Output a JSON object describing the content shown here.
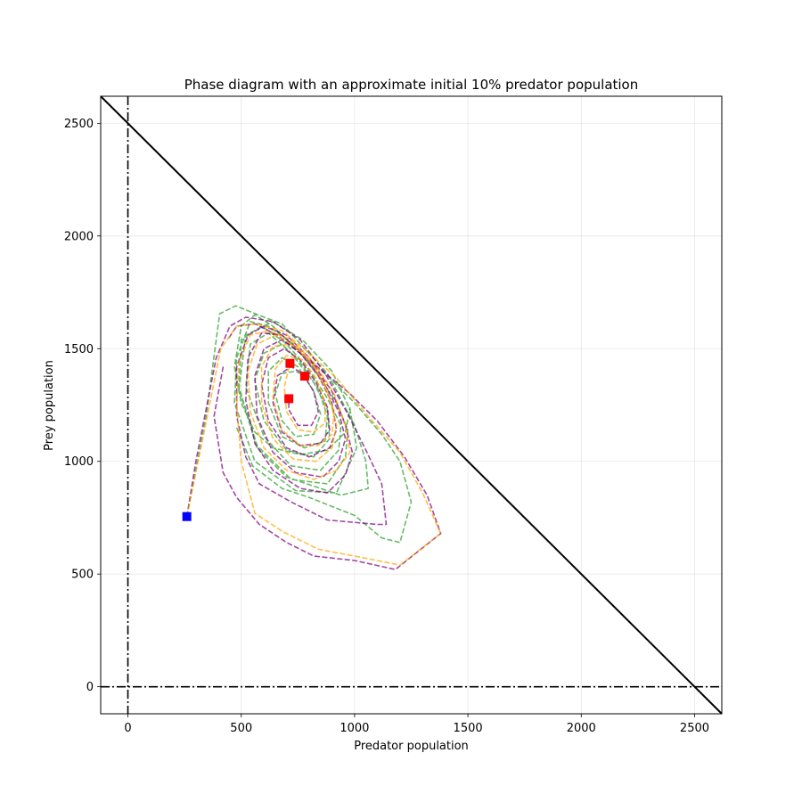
{
  "chart_data": {
    "type": "line",
    "title": "Phase diagram with an approximate initial 10% predator population",
    "xlabel": "Predator population",
    "ylabel": "Prey population",
    "xlim": [
      -120,
      2620
    ],
    "ylim": [
      -120,
      2620
    ],
    "xticks": [
      0,
      500,
      1000,
      1500,
      2000,
      2500
    ],
    "yticks": [
      0,
      500,
      1000,
      1500,
      2000,
      2500
    ],
    "grid": true,
    "reference_lines": {
      "capacity_line": [
        [
          -120,
          2620
        ],
        [
          2620,
          -120
        ]
      ],
      "x_zero": 0,
      "y_zero": 0
    },
    "start_point": {
      "x": 260,
      "y": 755,
      "color": "#0000ff"
    },
    "end_points": [
      {
        "x": 710,
        "y": 1278,
        "color": "#ff0000"
      },
      {
        "x": 780,
        "y": 1378,
        "color": "#ff0000"
      },
      {
        "x": 715,
        "y": 1435,
        "color": "#ff0000"
      }
    ],
    "series": [
      {
        "color": "#2ca02c",
        "points": [
          [
            260,
            755
          ],
          [
            345,
            1200
          ],
          [
            405,
            1655
          ],
          [
            475,
            1690
          ],
          [
            600,
            1640
          ],
          [
            680,
            1610
          ],
          [
            880,
            1390
          ],
          [
            1000,
            1160
          ],
          [
            1050,
            1000
          ],
          [
            1060,
            880
          ],
          [
            940,
            850
          ],
          [
            700,
            930
          ],
          [
            570,
            1060
          ],
          [
            490,
            1320
          ],
          [
            520,
            1560
          ],
          [
            640,
            1620
          ],
          [
            770,
            1540
          ],
          [
            900,
            1400
          ],
          [
            980,
            1230
          ],
          [
            1010,
            1060
          ],
          [
            920,
            860
          ],
          [
            740,
            870
          ],
          [
            560,
            1000
          ],
          [
            470,
            1260
          ],
          [
            480,
            1460
          ],
          [
            540,
            1620
          ],
          [
            620,
            1600
          ],
          [
            730,
            1520
          ],
          [
            840,
            1380
          ],
          [
            920,
            1260
          ],
          [
            970,
            1140
          ],
          [
            960,
            1020
          ],
          [
            880,
            900
          ],
          [
            720,
            920
          ],
          [
            570,
            1070
          ],
          [
            490,
            1330
          ],
          [
            500,
            1540
          ],
          [
            590,
            1600
          ],
          [
            690,
            1530
          ],
          [
            790,
            1420
          ],
          [
            880,
            1280
          ],
          [
            940,
            1160
          ],
          [
            930,
            1050
          ],
          [
            850,
            960
          ],
          [
            720,
            980
          ],
          [
            600,
            1110
          ],
          [
            520,
            1330
          ],
          [
            540,
            1520
          ],
          [
            620,
            1570
          ],
          [
            720,
            1480
          ],
          [
            820,
            1350
          ],
          [
            880,
            1230
          ],
          [
            890,
            1100
          ],
          [
            820,
            1020
          ],
          [
            700,
            1050
          ],
          [
            600,
            1180
          ],
          [
            560,
            1360
          ],
          [
            600,
            1480
          ],
          [
            680,
            1520
          ],
          [
            760,
            1440
          ],
          [
            840,
            1320
          ],
          [
            880,
            1200
          ],
          [
            870,
            1090
          ],
          [
            780,
            1060
          ],
          [
            680,
            1110
          ],
          [
            620,
            1260
          ],
          [
            620,
            1400
          ],
          [
            680,
            1460
          ],
          [
            750,
            1420
          ],
          [
            820,
            1310
          ],
          [
            850,
            1210
          ],
          [
            820,
            1120
          ],
          [
            740,
            1110
          ],
          [
            680,
            1180
          ],
          [
            650,
            1300
          ],
          [
            680,
            1390
          ],
          [
            740,
            1400
          ],
          [
            780,
            1378
          ]
        ]
      },
      {
        "color": "#2ca02c",
        "points": [
          [
            480,
            1150
          ],
          [
            550,
            980
          ],
          [
            680,
            880
          ],
          [
            800,
            840
          ],
          [
            1000,
            760
          ],
          [
            1120,
            660
          ],
          [
            1200,
            640
          ],
          [
            1250,
            820
          ],
          [
            1200,
            1000
          ],
          [
            1120,
            1120
          ],
          [
            1000,
            1260
          ],
          [
            880,
            1380
          ],
          [
            760,
            1480
          ],
          [
            640,
            1600
          ],
          [
            560,
            1650
          ],
          [
            500,
            1600
          ],
          [
            470,
            1420
          ],
          [
            500,
            1260
          ],
          [
            560,
            1130
          ],
          [
            640,
            1060
          ],
          [
            760,
            1030
          ],
          [
            880,
            1050
          ],
          [
            960,
            1130
          ],
          [
            980,
            1240
          ]
        ]
      },
      {
        "color": "#800080",
        "points": [
          [
            260,
            755
          ],
          [
            300,
            1000
          ],
          [
            390,
            1460
          ],
          [
            450,
            1600
          ],
          [
            520,
            1640
          ],
          [
            640,
            1620
          ],
          [
            760,
            1540
          ],
          [
            870,
            1390
          ],
          [
            970,
            1210
          ],
          [
            1050,
            1050
          ],
          [
            1120,
            900
          ],
          [
            1140,
            720
          ],
          [
            1100,
            720
          ],
          [
            880,
            740
          ],
          [
            720,
            820
          ],
          [
            580,
            900
          ],
          [
            520,
            1020
          ],
          [
            480,
            1200
          ],
          [
            480,
            1420
          ],
          [
            530,
            1560
          ],
          [
            600,
            1600
          ],
          [
            700,
            1560
          ],
          [
            800,
            1460
          ],
          [
            900,
            1310
          ],
          [
            960,
            1160
          ],
          [
            990,
            1040
          ],
          [
            960,
            940
          ],
          [
            880,
            860
          ],
          [
            760,
            880
          ],
          [
            640,
            960
          ],
          [
            560,
            1080
          ],
          [
            520,
            1270
          ],
          [
            530,
            1460
          ],
          [
            590,
            1570
          ],
          [
            680,
            1560
          ],
          [
            770,
            1480
          ],
          [
            860,
            1360
          ],
          [
            930,
            1220
          ],
          [
            960,
            1100
          ],
          [
            930,
            1000
          ],
          [
            860,
            930
          ],
          [
            740,
            950
          ],
          [
            640,
            1040
          ],
          [
            570,
            1200
          ],
          [
            560,
            1380
          ],
          [
            600,
            1500
          ],
          [
            680,
            1540
          ],
          [
            760,
            1480
          ],
          [
            840,
            1380
          ],
          [
            900,
            1260
          ],
          [
            920,
            1140
          ],
          [
            890,
            1060
          ],
          [
            800,
            1020
          ],
          [
            700,
            1060
          ],
          [
            620,
            1180
          ],
          [
            590,
            1340
          ],
          [
            620,
            1460
          ],
          [
            690,
            1500
          ],
          [
            760,
            1450
          ],
          [
            830,
            1350
          ],
          [
            880,
            1240
          ],
          [
            890,
            1140
          ],
          [
            850,
            1080
          ],
          [
            760,
            1070
          ],
          [
            680,
            1130
          ],
          [
            640,
            1260
          ],
          [
            660,
            1380
          ],
          [
            720,
            1420
          ],
          [
            770,
            1390
          ],
          [
            820,
            1310
          ],
          [
            840,
            1220
          ],
          [
            810,
            1160
          ],
          [
            750,
            1160
          ],
          [
            710,
            1230
          ],
          [
            710,
            1278
          ]
        ]
      },
      {
        "color": "#800080",
        "points": [
          [
            420,
            1420
          ],
          [
            380,
            1200
          ],
          [
            420,
            950
          ],
          [
            480,
            840
          ],
          [
            580,
            720
          ],
          [
            700,
            640
          ],
          [
            820,
            580
          ],
          [
            1000,
            560
          ],
          [
            1180,
            520
          ],
          [
            1280,
            600
          ],
          [
            1380,
            680
          ],
          [
            1320,
            850
          ],
          [
            1220,
            1020
          ],
          [
            1100,
            1180
          ],
          [
            980,
            1300
          ],
          [
            860,
            1400
          ],
          [
            760,
            1480
          ],
          [
            660,
            1560
          ],
          [
            560,
            1610
          ],
          [
            480,
            1600
          ],
          [
            440,
            1540
          ]
        ]
      },
      {
        "color": "#ffa500",
        "points": [
          [
            260,
            755
          ],
          [
            330,
            1100
          ],
          [
            410,
            1500
          ],
          [
            480,
            1600
          ],
          [
            560,
            1610
          ],
          [
            680,
            1580
          ],
          [
            800,
            1480
          ],
          [
            920,
            1370
          ],
          [
            1060,
            1200
          ],
          [
            1200,
            1040
          ],
          [
            1300,
            860
          ],
          [
            1380,
            680
          ],
          [
            1200,
            540
          ],
          [
            1000,
            580
          ],
          [
            840,
            610
          ],
          [
            680,
            690
          ],
          [
            560,
            770
          ],
          [
            500,
            1000
          ],
          [
            480,
            1250
          ],
          [
            490,
            1440
          ],
          [
            540,
            1560
          ],
          [
            620,
            1580
          ],
          [
            720,
            1540
          ],
          [
            820,
            1440
          ],
          [
            910,
            1300
          ],
          [
            960,
            1160
          ],
          [
            980,
            1040
          ],
          [
            920,
            960
          ],
          [
            820,
            920
          ],
          [
            700,
            960
          ],
          [
            600,
            1060
          ],
          [
            540,
            1220
          ],
          [
            530,
            1400
          ],
          [
            570,
            1520
          ],
          [
            650,
            1560
          ],
          [
            740,
            1510
          ],
          [
            830,
            1410
          ],
          [
            890,
            1280
          ],
          [
            920,
            1160
          ],
          [
            900,
            1060
          ],
          [
            830,
            1000
          ],
          [
            730,
            1010
          ],
          [
            640,
            1100
          ],
          [
            590,
            1260
          ],
          [
            590,
            1420
          ],
          [
            640,
            1510
          ],
          [
            720,
            1520
          ],
          [
            800,
            1450
          ],
          [
            870,
            1340
          ],
          [
            910,
            1220
          ],
          [
            900,
            1120
          ],
          [
            840,
            1070
          ],
          [
            760,
            1070
          ],
          [
            680,
            1140
          ],
          [
            640,
            1280
          ],
          [
            650,
            1410
          ],
          [
            700,
            1470
          ],
          [
            770,
            1450
          ],
          [
            830,
            1370
          ],
          [
            870,
            1260
          ],
          [
            870,
            1170
          ],
          [
            820,
            1130
          ],
          [
            750,
            1140
          ],
          [
            700,
            1220
          ],
          [
            690,
            1330
          ],
          [
            715,
            1435
          ]
        ]
      }
    ]
  }
}
